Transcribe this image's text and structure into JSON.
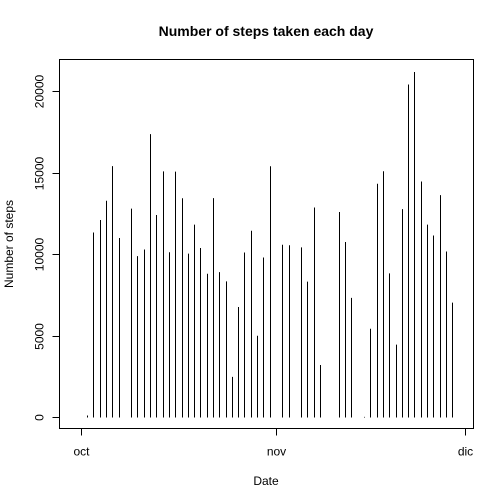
{
  "chart_data": {
    "type": "bar",
    "style": "histogram-lines",
    "title": "Number of steps taken each day",
    "xlabel": "Date",
    "ylabel": "Number of steps",
    "xlim": [
      "2012-09-30",
      "2012-11-30"
    ],
    "ylim": [
      0,
      22000
    ],
    "x_ticks": [
      {
        "date": "2012-10-01",
        "label": "oct"
      },
      {
        "date": "2012-11-01",
        "label": "nov"
      },
      {
        "date": "2012-12-01",
        "label": "dic"
      }
    ],
    "y_ticks": [
      0,
      5000,
      10000,
      15000,
      20000
    ],
    "grid": false,
    "legend": "none",
    "x": [
      "2012-10-02",
      "2012-10-03",
      "2012-10-04",
      "2012-10-05",
      "2012-10-06",
      "2012-10-07",
      "2012-10-09",
      "2012-10-10",
      "2012-10-11",
      "2012-10-12",
      "2012-10-13",
      "2012-10-14",
      "2012-10-15",
      "2012-10-16",
      "2012-10-17",
      "2012-10-18",
      "2012-10-19",
      "2012-10-20",
      "2012-10-21",
      "2012-10-22",
      "2012-10-23",
      "2012-10-24",
      "2012-10-25",
      "2012-10-26",
      "2012-10-27",
      "2012-10-28",
      "2012-10-29",
      "2012-10-30",
      "2012-10-31",
      "2012-11-02",
      "2012-11-03",
      "2012-11-05",
      "2012-11-06",
      "2012-11-07",
      "2012-11-08",
      "2012-11-11",
      "2012-11-12",
      "2012-11-13",
      "2012-11-15",
      "2012-11-16",
      "2012-11-17",
      "2012-11-18",
      "2012-11-19",
      "2012-11-20",
      "2012-11-21",
      "2012-11-22",
      "2012-11-23",
      "2012-11-24",
      "2012-11-25",
      "2012-11-26",
      "2012-11-27",
      "2012-11-28",
      "2012-11-29"
    ],
    "values": [
      126,
      11352,
      12116,
      13294,
      15420,
      11015,
      12811,
      9900,
      10304,
      17382,
      12426,
      15098,
      10139,
      15084,
      13452,
      10056,
      11829,
      10395,
      8821,
      13460,
      8918,
      8355,
      2492,
      6778,
      10119,
      11458,
      5018,
      9819,
      15414,
      10600,
      10571,
      10439,
      8334,
      12883,
      3219,
      12608,
      10765,
      7336,
      41,
      5441,
      14339,
      15110,
      8841,
      4472,
      12787,
      20427,
      21194,
      14478,
      11834,
      11162,
      13646,
      10183,
      7047
    ]
  }
}
